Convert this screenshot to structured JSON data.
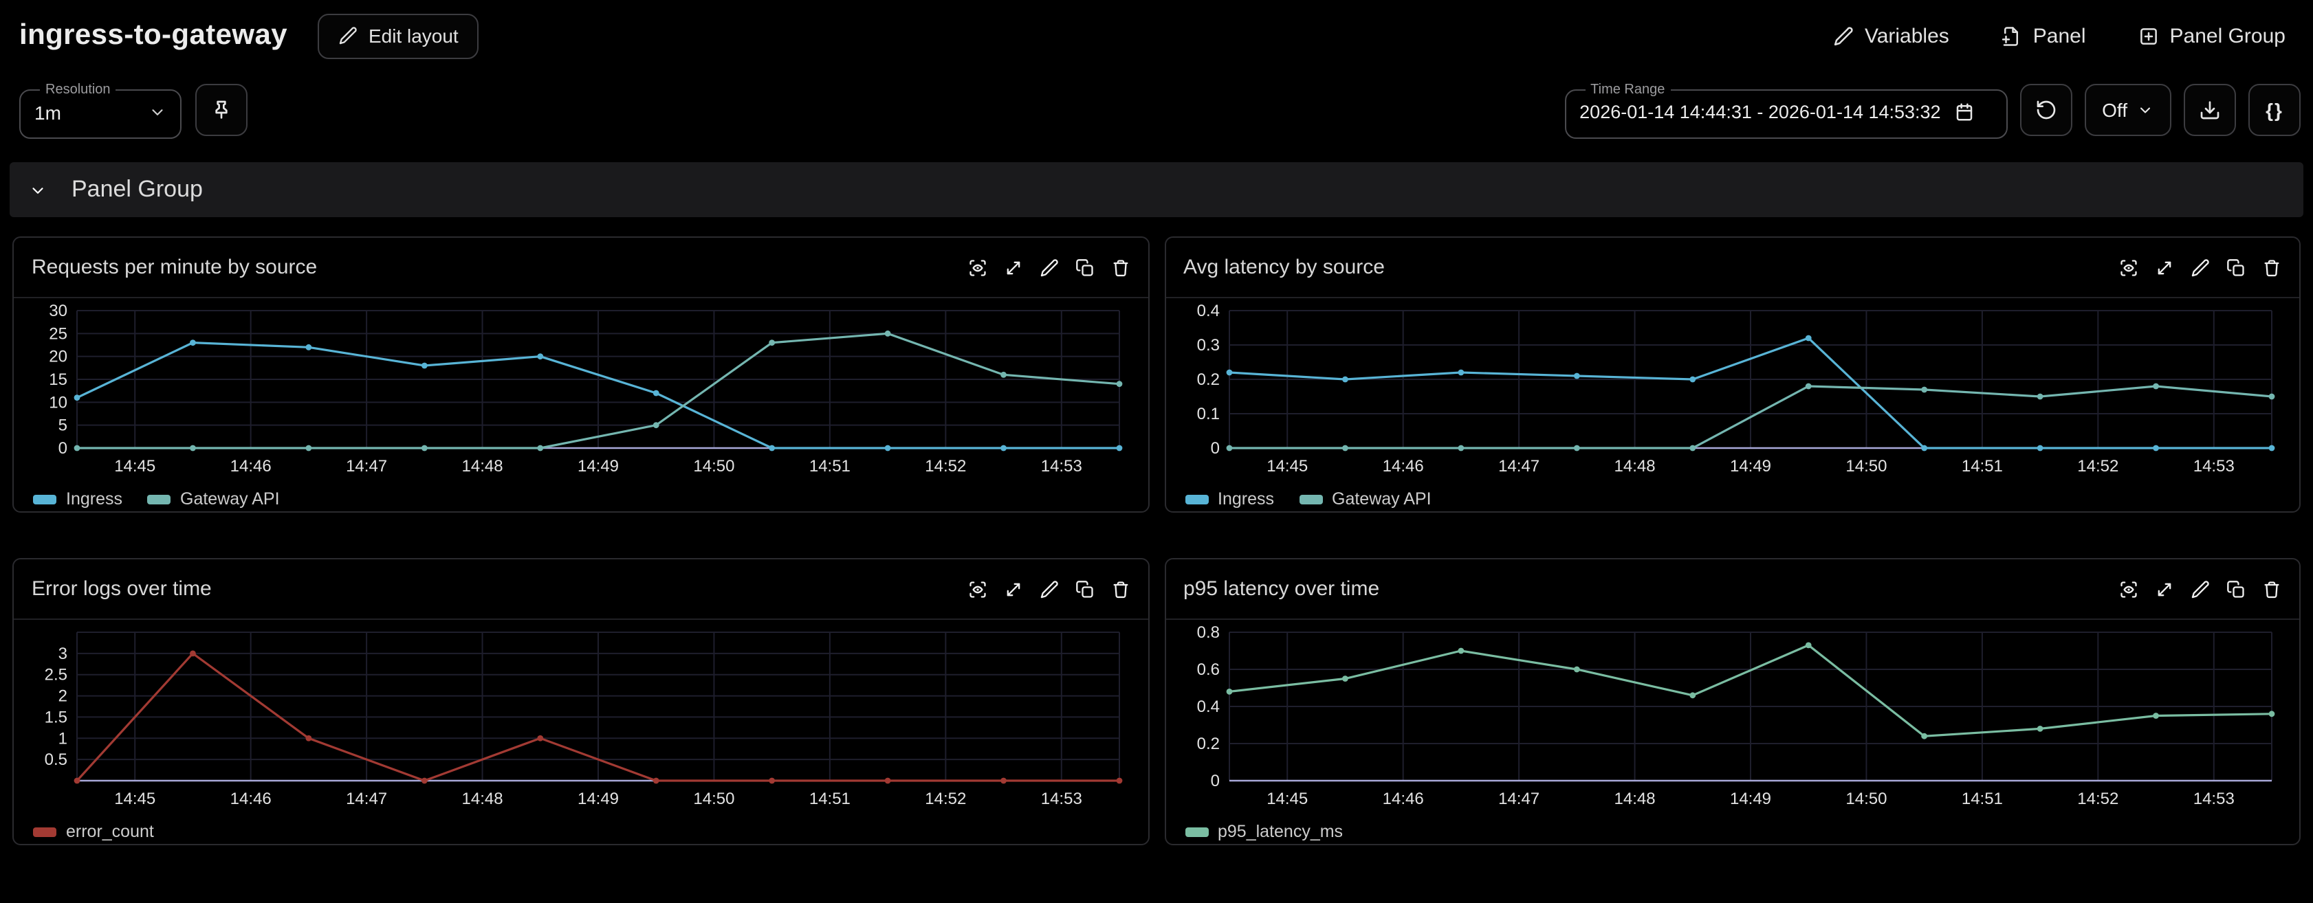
{
  "header": {
    "title": "ingress-to-gateway",
    "edit_layout_label": "Edit layout",
    "variables_label": "Variables",
    "add_panel_label": "Panel",
    "add_panel_group_label": "Panel Group"
  },
  "toolbar": {
    "resolution_label": "Resolution",
    "resolution_value": "1m",
    "time_range_label": "Time Range",
    "time_range_value": "2026-01-14 14:44:31 - 2026-01-14 14:53:32",
    "refresh_interval_value": "Off",
    "json_button_label": "{}"
  },
  "panel_group": {
    "title": "Panel Group"
  },
  "colors": {
    "page_bg": "#000000",
    "panel_border": "#2a2a2e",
    "grid_line": "#1e1e2c",
    "zero_axis_line": "#a9a9da",
    "ingress": "#58b4d6",
    "gateway_api": "#74b6b0",
    "error_count": "#a23a33",
    "p95_latency": "#7abda2"
  },
  "chart_data": [
    {
      "type": "line",
      "title": "Requests per minute by source",
      "x_points": [
        "14:44:30",
        "14:45:30",
        "14:46:30",
        "14:47:30",
        "14:48:30",
        "14:49:30",
        "14:50:30",
        "14:51:30",
        "14:52:30",
        "14:53:30"
      ],
      "x_tick_labels": [
        "14:45",
        "14:46",
        "14:47",
        "14:48",
        "14:49",
        "14:50",
        "14:51",
        "14:52",
        "14:53"
      ],
      "ylim": [
        0,
        30
      ],
      "y_gridlines": [
        0,
        5,
        10,
        15,
        20,
        25,
        30
      ],
      "y_ticks": [
        0,
        5,
        10,
        15,
        20,
        25,
        30
      ],
      "grid": true,
      "legend_position": "bottom-left",
      "series": [
        {
          "name": "Ingress",
          "color": "#58b4d6",
          "values": [
            11,
            23,
            22,
            18,
            20,
            12,
            0,
            0,
            0,
            0
          ]
        },
        {
          "name": "Gateway API",
          "color": "#74b6b0",
          "values": [
            0,
            0,
            0,
            0,
            0,
            5,
            23,
            25,
            16,
            14
          ]
        }
      ]
    },
    {
      "type": "line",
      "title": "Avg latency by source",
      "x_points": [
        "14:44:30",
        "14:45:30",
        "14:46:30",
        "14:47:30",
        "14:48:30",
        "14:49:30",
        "14:50:30",
        "14:51:30",
        "14:52:30",
        "14:53:30"
      ],
      "x_tick_labels": [
        "14:45",
        "14:46",
        "14:47",
        "14:48",
        "14:49",
        "14:50",
        "14:51",
        "14:52",
        "14:53"
      ],
      "ylim": [
        0,
        0.4
      ],
      "y_gridlines": [
        0,
        0.1,
        0.2,
        0.3,
        0.4
      ],
      "y_ticks": [
        0,
        0.1,
        0.2,
        0.3,
        0.4
      ],
      "grid": true,
      "legend_position": "bottom-left",
      "series": [
        {
          "name": "Ingress",
          "color": "#58b4d6",
          "values": [
            0.22,
            0.2,
            0.22,
            0.21,
            0.2,
            0.32,
            0,
            0,
            0,
            0
          ]
        },
        {
          "name": "Gateway API",
          "color": "#74b6b0",
          "values": [
            0,
            0,
            0,
            0,
            0,
            0.18,
            0.17,
            0.15,
            0.18,
            0.15
          ]
        }
      ]
    },
    {
      "type": "line",
      "title": "Error logs over time",
      "x_points": [
        "14:44:30",
        "14:45:30",
        "14:46:30",
        "14:47:30",
        "14:48:30",
        "14:49:30",
        "14:50:30",
        "14:51:30",
        "14:52:30",
        "14:53:30"
      ],
      "x_tick_labels": [
        "14:45",
        "14:46",
        "14:47",
        "14:48",
        "14:49",
        "14:50",
        "14:51",
        "14:52",
        "14:53"
      ],
      "ylim": [
        0,
        3.5
      ],
      "y_gridlines": [
        0,
        0.5,
        1,
        1.5,
        2,
        2.5,
        3,
        3.5
      ],
      "y_ticks": [
        0.5,
        1,
        1.5,
        2,
        2.5,
        3
      ],
      "grid": true,
      "legend_position": "bottom-left",
      "series": [
        {
          "name": "error_count",
          "color": "#a23a33",
          "values": [
            0,
            3,
            1,
            0,
            1,
            0,
            0,
            0,
            0,
            0
          ]
        }
      ]
    },
    {
      "type": "line",
      "title": "p95 latency over time",
      "x_points": [
        "14:44:30",
        "14:45:30",
        "14:46:30",
        "14:47:30",
        "14:48:30",
        "14:49:30",
        "14:50:30",
        "14:51:30",
        "14:52:30",
        "14:53:30"
      ],
      "x_tick_labels": [
        "14:45",
        "14:46",
        "14:47",
        "14:48",
        "14:49",
        "14:50",
        "14:51",
        "14:52",
        "14:53"
      ],
      "ylim": [
        0,
        0.8
      ],
      "y_gridlines": [
        0,
        0.2,
        0.4,
        0.6,
        0.8
      ],
      "y_ticks": [
        0,
        0.2,
        0.4,
        0.6,
        0.8
      ],
      "grid": true,
      "legend_position": "bottom-left",
      "series": [
        {
          "name": "p95_latency_ms",
          "color": "#7abda2",
          "values": [
            0.48,
            0.55,
            0.7,
            0.6,
            0.46,
            0.73,
            0.24,
            0.28,
            0.35,
            0.36
          ]
        }
      ]
    }
  ]
}
